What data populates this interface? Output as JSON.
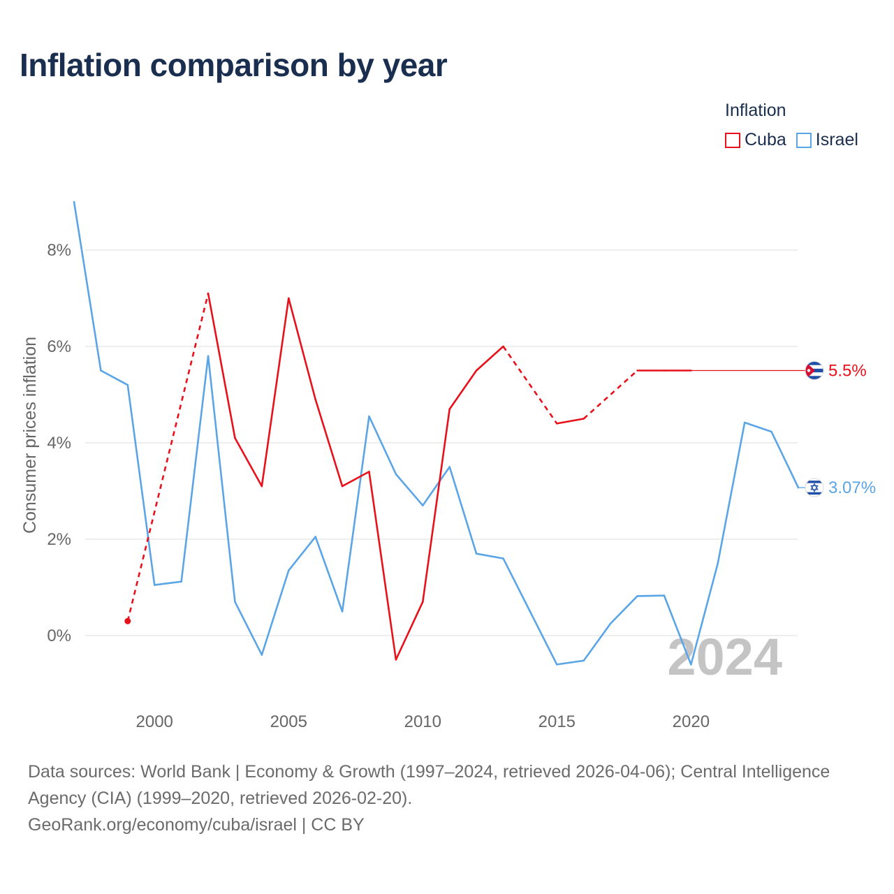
{
  "title": "Inflation comparison by year",
  "legend": {
    "title": "Inflation",
    "items": [
      {
        "label": "Cuba",
        "color": "#e8101a"
      },
      {
        "label": "Israel",
        "color": "#5aa5e6"
      }
    ]
  },
  "year_watermark": "2024",
  "sources": {
    "line1": "Data sources: World Bank | Economy & Growth (1997–2024, retrieved 2026-04-06); Central Intelligence Agency (CIA) (1999–2020, retrieved 2026-02-20).",
    "line2": "GeoRank.org/economy/cuba/israel | CC BY"
  },
  "chart_data": {
    "type": "line",
    "title": "Inflation comparison by year",
    "xlabel": "",
    "ylabel": "Consumer prices inflation",
    "xlim": [
      1997,
      2024
    ],
    "ylim": [
      -1.5,
      9
    ],
    "x_ticks": [
      2000,
      2005,
      2010,
      2015,
      2020
    ],
    "y_ticks": [
      0,
      2,
      4,
      6,
      8
    ],
    "y_tick_labels": [
      "0%",
      "2%",
      "4%",
      "6%",
      "8%"
    ],
    "grid": true,
    "legend_position": "top-right",
    "series": [
      {
        "name": "Cuba",
        "color": "#e8101a",
        "end_label": "5.5%",
        "flag": "cuba-flag-icon",
        "points": [
          {
            "x": 1999,
            "y": 0.3,
            "dashed_to_next": true
          },
          {
            "x": 2002,
            "y": 7.1
          },
          {
            "x": 2003,
            "y": 4.1
          },
          {
            "x": 2004,
            "y": 3.1
          },
          {
            "x": 2005,
            "y": 7.0
          },
          {
            "x": 2006,
            "y": 4.9
          },
          {
            "x": 2007,
            "y": 3.1
          },
          {
            "x": 2008,
            "y": 3.4
          },
          {
            "x": 2009,
            "y": -0.5
          },
          {
            "x": 2010,
            "y": 0.7
          },
          {
            "x": 2011,
            "y": 4.7
          },
          {
            "x": 2012,
            "y": 5.5
          },
          {
            "x": 2013,
            "y": 6.0,
            "dashed_to_next": true
          },
          {
            "x": 2015,
            "y": 4.4
          },
          {
            "x": 2016,
            "y": 4.5,
            "dashed_to_next": true
          },
          {
            "x": 2018,
            "y": 5.5
          },
          {
            "x": 2019,
            "y": 5.5
          },
          {
            "x": 2020,
            "y": 5.5
          }
        ]
      },
      {
        "name": "Israel",
        "color": "#5aa5e6",
        "end_label": "3.07%",
        "flag": "israel-flag-icon",
        "points": [
          {
            "x": 1997,
            "y": 9.0
          },
          {
            "x": 1998,
            "y": 5.5
          },
          {
            "x": 1999,
            "y": 5.2
          },
          {
            "x": 2000,
            "y": 1.05
          },
          {
            "x": 2001,
            "y": 1.12
          },
          {
            "x": 2002,
            "y": 5.8
          },
          {
            "x": 2003,
            "y": 0.7
          },
          {
            "x": 2004,
            "y": -0.4
          },
          {
            "x": 2005,
            "y": 1.35
          },
          {
            "x": 2006,
            "y": 2.05
          },
          {
            "x": 2007,
            "y": 0.5
          },
          {
            "x": 2008,
            "y": 4.55
          },
          {
            "x": 2009,
            "y": 3.35
          },
          {
            "x": 2010,
            "y": 2.7
          },
          {
            "x": 2011,
            "y": 3.5
          },
          {
            "x": 2012,
            "y": 1.7
          },
          {
            "x": 2013,
            "y": 1.6
          },
          {
            "x": 2014,
            "y": 0.5
          },
          {
            "x": 2015,
            "y": -0.6
          },
          {
            "x": 2016,
            "y": -0.52
          },
          {
            "x": 2017,
            "y": 0.25
          },
          {
            "x": 2018,
            "y": 0.82
          },
          {
            "x": 2019,
            "y": 0.83
          },
          {
            "x": 2020,
            "y": -0.6
          },
          {
            "x": 2021,
            "y": 1.5
          },
          {
            "x": 2022,
            "y": 4.42
          },
          {
            "x": 2023,
            "y": 4.23
          },
          {
            "x": 2024,
            "y": 3.07
          }
        ]
      }
    ]
  }
}
